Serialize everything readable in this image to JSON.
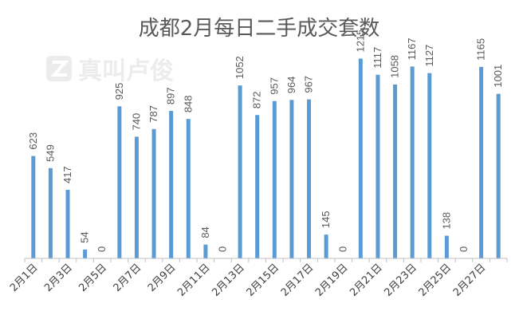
{
  "watermark": "真叫卢俊",
  "colors": {
    "bar": "#5b9bd5",
    "axis": "#bfbfbf",
    "text": "#595959"
  },
  "chart_data": {
    "type": "bar",
    "title": "成都2月每日二手成交套数",
    "xlabel": "",
    "ylabel": "",
    "ylim": [
      0,
      1300
    ],
    "grid": false,
    "legend": "none",
    "categories": [
      "2月1日",
      "2月2日",
      "2月3日",
      "2月4日",
      "2月5日",
      "2月6日",
      "2月7日",
      "2月8日",
      "2月9日",
      "2月10日",
      "2月11日",
      "2月12日",
      "2月13日",
      "2月14日",
      "2月15日",
      "2月16日",
      "2月17日",
      "2月18日",
      "2月19日",
      "2月20日",
      "2月21日",
      "2月22日",
      "2月23日",
      "2月24日",
      "2月25日",
      "2月26日",
      "2月27日",
      "2月28日"
    ],
    "visible_tick_labels": [
      "2月1日",
      "2月3日",
      "2月5日",
      "2月7日",
      "2月9日",
      "2月11日",
      "2月13日",
      "2月15日",
      "2月17日",
      "2月19日",
      "2月21日",
      "2月23日",
      "2月25日",
      "2月27日"
    ],
    "values": [
      623,
      549,
      417,
      54,
      0,
      925,
      740,
      787,
      897,
      848,
      84,
      0,
      1052,
      872,
      957,
      964,
      967,
      145,
      0,
      1215,
      1117,
      1058,
      1167,
      1127,
      138,
      0,
      1165,
      1001
    ]
  }
}
